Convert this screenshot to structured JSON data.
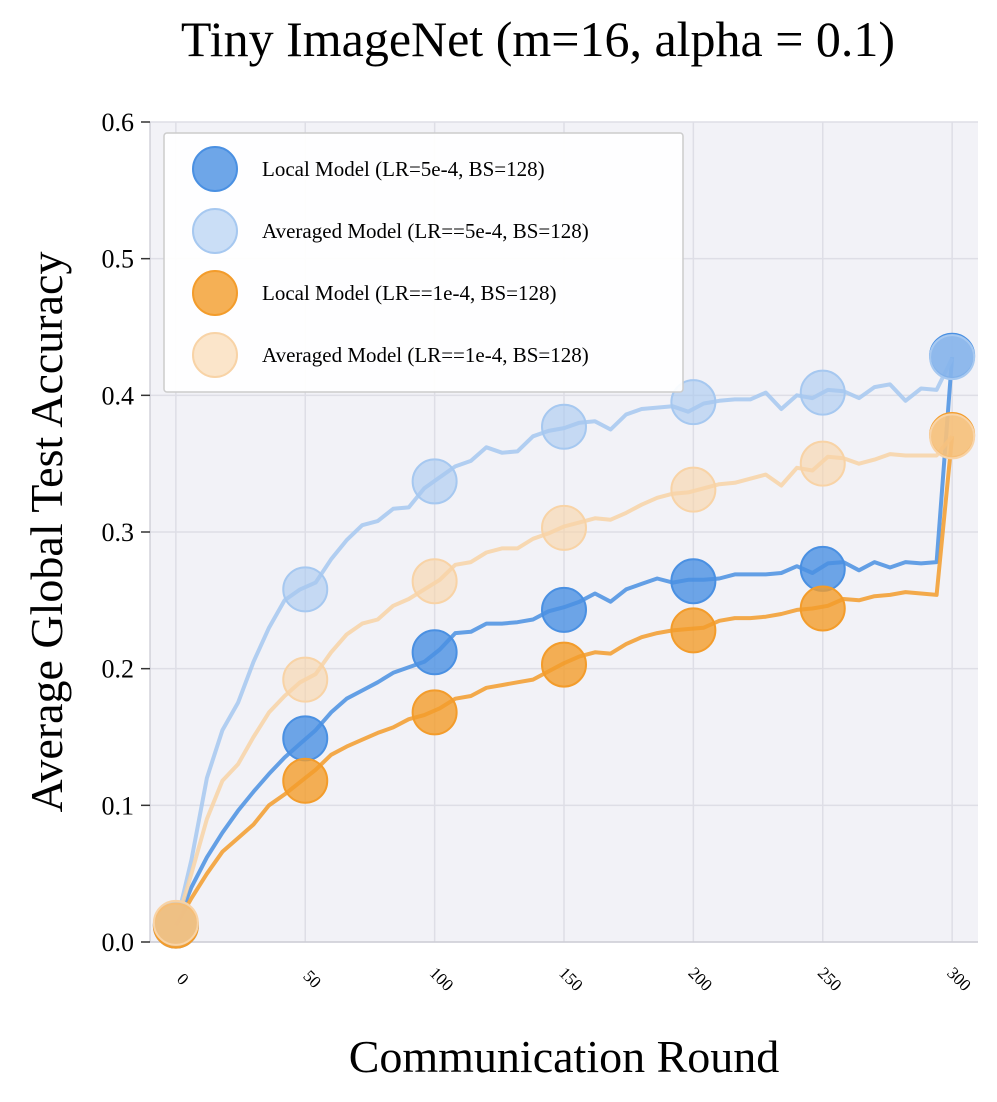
{
  "chart_data": {
    "type": "line",
    "title": "Tiny ImageNet (m=16, alpha = 0.1)",
    "xlabel": "Communication Round",
    "ylabel": "Average Global Test Accuracy",
    "xlim": [
      -10,
      310
    ],
    "ylim": [
      0,
      0.6
    ],
    "xticks": [
      0,
      50,
      100,
      150,
      200,
      250,
      300
    ],
    "xtick_labels": [
      "0",
      "50",
      "100",
      "150",
      "200",
      "250",
      "300"
    ],
    "yticks": [
      0.0,
      0.1,
      0.2,
      0.3,
      0.4,
      0.5,
      0.6
    ],
    "ytick_labels": [
      "0.0",
      "0.1",
      "0.2",
      "0.3",
      "0.4",
      "0.5",
      "0.6"
    ],
    "grid": true,
    "legend_position": "top-left",
    "marker_x": [
      0,
      50,
      100,
      150,
      200,
      250,
      300
    ],
    "series": [
      {
        "name": "Local Model (LR=5e-4, BS=128)",
        "color": "#4a90e2",
        "line_opacity": 0.85,
        "marker_opacity": 0.8,
        "x": [
          0,
          6,
          12,
          18,
          24,
          30,
          36,
          42,
          48,
          54,
          60,
          66,
          72,
          78,
          84,
          90,
          96,
          102,
          108,
          114,
          120,
          126,
          132,
          138,
          144,
          150,
          156,
          162,
          168,
          174,
          180,
          186,
          192,
          198,
          204,
          210,
          216,
          222,
          228,
          234,
          240,
          246,
          252,
          258,
          264,
          270,
          276,
          282,
          288,
          294,
          300
        ],
        "y": [
          0.012,
          0.04,
          0.062,
          0.08,
          0.096,
          0.11,
          0.123,
          0.135,
          0.145,
          0.155,
          0.168,
          0.178,
          0.184,
          0.19,
          0.197,
          0.201,
          0.205,
          0.214,
          0.226,
          0.227,
          0.233,
          0.233,
          0.234,
          0.236,
          0.242,
          0.245,
          0.249,
          0.255,
          0.249,
          0.258,
          0.262,
          0.266,
          0.263,
          0.265,
          0.265,
          0.266,
          0.269,
          0.269,
          0.269,
          0.27,
          0.275,
          0.27,
          0.277,
          0.278,
          0.272,
          0.278,
          0.274,
          0.278,
          0.277,
          0.278,
          0.428
        ],
        "marker_y": [
          0.012,
          0.149,
          0.212,
          0.243,
          0.264,
          0.273,
          0.429
        ]
      },
      {
        "name": "Averaged Model (LR==5e-4, BS=128)",
        "color": "#a6c8f0",
        "line_opacity": 0.85,
        "marker_opacity": 0.6,
        "x": [
          0,
          6,
          12,
          18,
          24,
          30,
          36,
          42,
          48,
          54,
          60,
          66,
          72,
          78,
          84,
          90,
          96,
          102,
          108,
          114,
          120,
          126,
          132,
          138,
          144,
          150,
          156,
          162,
          168,
          174,
          180,
          186,
          192,
          198,
          204,
          210,
          216,
          222,
          228,
          234,
          240,
          246,
          252,
          258,
          264,
          270,
          276,
          282,
          288,
          294,
          300
        ],
        "y": [
          0.012,
          0.06,
          0.12,
          0.155,
          0.175,
          0.205,
          0.23,
          0.25,
          0.258,
          0.263,
          0.28,
          0.294,
          0.305,
          0.308,
          0.317,
          0.318,
          0.332,
          0.34,
          0.348,
          0.352,
          0.362,
          0.358,
          0.359,
          0.37,
          0.374,
          0.376,
          0.38,
          0.381,
          0.375,
          0.386,
          0.39,
          0.391,
          0.392,
          0.388,
          0.394,
          0.396,
          0.397,
          0.397,
          0.402,
          0.39,
          0.4,
          0.398,
          0.404,
          0.403,
          0.398,
          0.406,
          0.408,
          0.396,
          0.405,
          0.404,
          0.427
        ],
        "marker_y": [
          0.013,
          0.258,
          0.337,
          0.377,
          0.395,
          0.402,
          0.428
        ]
      },
      {
        "name": "Local Model (LR==1e-4, BS=128)",
        "color": "#f39c2b",
        "line_opacity": 0.85,
        "marker_opacity": 0.8,
        "x": [
          0,
          6,
          12,
          18,
          24,
          30,
          36,
          42,
          48,
          54,
          60,
          66,
          72,
          78,
          84,
          90,
          96,
          102,
          108,
          114,
          120,
          126,
          132,
          138,
          144,
          150,
          156,
          162,
          168,
          174,
          180,
          186,
          192,
          198,
          204,
          210,
          216,
          222,
          228,
          234,
          240,
          246,
          252,
          258,
          264,
          270,
          276,
          282,
          288,
          294,
          300
        ],
        "y": [
          0.012,
          0.032,
          0.05,
          0.066,
          0.076,
          0.086,
          0.1,
          0.108,
          0.117,
          0.126,
          0.137,
          0.143,
          0.148,
          0.153,
          0.157,
          0.163,
          0.166,
          0.171,
          0.178,
          0.18,
          0.186,
          0.188,
          0.19,
          0.192,
          0.198,
          0.204,
          0.209,
          0.212,
          0.211,
          0.218,
          0.223,
          0.226,
          0.228,
          0.229,
          0.23,
          0.235,
          0.237,
          0.237,
          0.238,
          0.24,
          0.243,
          0.244,
          0.246,
          0.251,
          0.25,
          0.253,
          0.254,
          0.256,
          0.255,
          0.254,
          0.37
        ],
        "marker_y": [
          0.012,
          0.118,
          0.168,
          0.203,
          0.228,
          0.244,
          0.371
        ]
      },
      {
        "name": "Averaged Model (LR==1e-4, BS=128)",
        "color": "#f8d3a6",
        "line_opacity": 0.85,
        "marker_opacity": 0.6,
        "x": [
          0,
          6,
          12,
          18,
          24,
          30,
          36,
          42,
          48,
          54,
          60,
          66,
          72,
          78,
          84,
          90,
          96,
          102,
          108,
          114,
          120,
          126,
          132,
          138,
          144,
          150,
          156,
          162,
          168,
          174,
          180,
          186,
          192,
          198,
          204,
          210,
          216,
          222,
          228,
          234,
          240,
          246,
          252,
          258,
          264,
          270,
          276,
          282,
          288,
          294,
          300
        ],
        "y": [
          0.012,
          0.05,
          0.09,
          0.118,
          0.13,
          0.15,
          0.168,
          0.18,
          0.19,
          0.196,
          0.212,
          0.225,
          0.233,
          0.236,
          0.246,
          0.251,
          0.258,
          0.265,
          0.276,
          0.278,
          0.285,
          0.288,
          0.288,
          0.295,
          0.299,
          0.304,
          0.307,
          0.31,
          0.309,
          0.314,
          0.32,
          0.325,
          0.328,
          0.329,
          0.332,
          0.335,
          0.336,
          0.339,
          0.342,
          0.334,
          0.347,
          0.345,
          0.355,
          0.354,
          0.35,
          0.353,
          0.357,
          0.356,
          0.356,
          0.356,
          0.37
        ],
        "marker_y": [
          0.014,
          0.192,
          0.264,
          0.303,
          0.331,
          0.35,
          0.37
        ]
      }
    ]
  }
}
